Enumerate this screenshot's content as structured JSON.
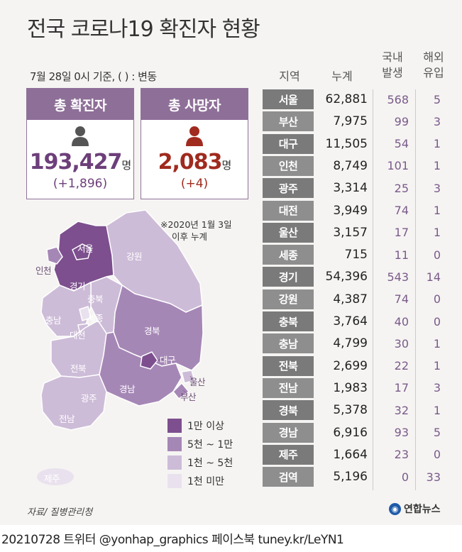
{
  "title": "전국 코로나19 확진자 현황",
  "as_of": "7월 28일 0시 기준, ( ) : 변동",
  "totals": {
    "confirmed_label": "총 확진자",
    "confirmed_value": "193,427",
    "confirmed_unit": "명",
    "confirmed_change": "(+1,896)",
    "deaths_label": "총 사망자",
    "deaths_value": "2,083",
    "deaths_unit": "명",
    "deaths_change": "(+4)"
  },
  "note": [
    "※2020년 1월 3일",
    "이후 누계"
  ],
  "map": {
    "labels": {
      "seoul": "서울",
      "incheon": "인천",
      "gyeonggi": "경기",
      "gangwon": "강원",
      "chungbuk": "충북",
      "chungnam": "충남",
      "sejong": "세종",
      "daejeon": "대전",
      "gyeongbuk": "경북",
      "daegu": "대구",
      "jeonbuk": "전북",
      "gwangju": "광주",
      "gyeongnam": "경남",
      "ulsan": "울산",
      "busan": "부산",
      "jeonnam": "전남",
      "jeju": "제주"
    },
    "legend": [
      {
        "label": "1만 이상",
        "color": "#7d4f8e"
      },
      {
        "label": "5천 ~ 1만",
        "color": "#a587b6"
      },
      {
        "label": "1천 ~ 5천",
        "color": "#cdbcd8"
      },
      {
        "label": "1천 미만",
        "color": "#e9e2ee"
      }
    ]
  },
  "table_headers": {
    "region": "지역",
    "cumulative": "누계",
    "domestic_1": "국내",
    "domestic_2": "발생",
    "overseas_1": "해외",
    "overseas_2": "유입"
  },
  "chart_data": {
    "type": "table",
    "title": "전국 코로나19 확진자 현황",
    "columns": [
      "지역",
      "누계",
      "국내 발생",
      "해외 유입"
    ],
    "rows": [
      {
        "region": "서울",
        "cumulative": "62,881",
        "domestic": "568",
        "overseas": "5"
      },
      {
        "region": "부산",
        "cumulative": "7,975",
        "domestic": "99",
        "overseas": "3"
      },
      {
        "region": "대구",
        "cumulative": "11,505",
        "domestic": "54",
        "overseas": "1"
      },
      {
        "region": "인천",
        "cumulative": "8,749",
        "domestic": "101",
        "overseas": "1"
      },
      {
        "region": "광주",
        "cumulative": "3,314",
        "domestic": "25",
        "overseas": "3"
      },
      {
        "region": "대전",
        "cumulative": "3,949",
        "domestic": "74",
        "overseas": "1"
      },
      {
        "region": "울산",
        "cumulative": "3,157",
        "domestic": "17",
        "overseas": "1"
      },
      {
        "region": "세종",
        "cumulative": "715",
        "domestic": "11",
        "overseas": "0"
      },
      {
        "region": "경기",
        "cumulative": "54,396",
        "domestic": "543",
        "overseas": "14"
      },
      {
        "region": "강원",
        "cumulative": "4,387",
        "domestic": "74",
        "overseas": "0"
      },
      {
        "region": "충북",
        "cumulative": "3,764",
        "domestic": "40",
        "overseas": "0"
      },
      {
        "region": "충남",
        "cumulative": "4,799",
        "domestic": "30",
        "overseas": "1"
      },
      {
        "region": "전북",
        "cumulative": "2,699",
        "domestic": "22",
        "overseas": "1"
      },
      {
        "region": "전남",
        "cumulative": "1,983",
        "domestic": "17",
        "overseas": "3"
      },
      {
        "region": "경북",
        "cumulative": "5,378",
        "domestic": "32",
        "overseas": "1"
      },
      {
        "region": "경남",
        "cumulative": "6,916",
        "domestic": "93",
        "overseas": "5"
      },
      {
        "region": "제주",
        "cumulative": "1,664",
        "domestic": "23",
        "overseas": "0"
      },
      {
        "region": "검역",
        "cumulative": "5,196",
        "domestic": "0",
        "overseas": "33"
      }
    ]
  },
  "source": "자료/ 질병관리청",
  "brand": "연합뉴스",
  "footer": "20210728 트위터 @yonhap_graphics 페이스북 tuney.kr/LeYN1"
}
